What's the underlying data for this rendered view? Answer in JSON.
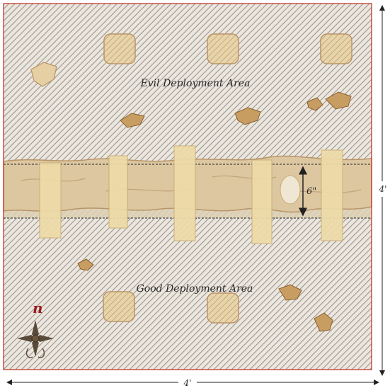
{
  "map": {
    "evil_area_label": "Evil Deployment Area",
    "good_area_label": "Good Deployment Area",
    "width_label": "4'",
    "height_label": "4'",
    "river_width_label": "6\"",
    "north_label": "n"
  },
  "colors": {
    "border": "#c0392b",
    "hatch_line": "#9c9590",
    "hatch_bg": "#ece7de",
    "river": "#dcc7a0",
    "river_dark": "#b89468",
    "bridge": "#eedba8",
    "bridge_edge": "#c9ad73",
    "building": "#e3c595",
    "rock": "#c79d62",
    "rock_dark": "#8a5f2e",
    "north_label": "#9a1b1b"
  },
  "icons": {
    "compass": "compass-rose-icon"
  }
}
